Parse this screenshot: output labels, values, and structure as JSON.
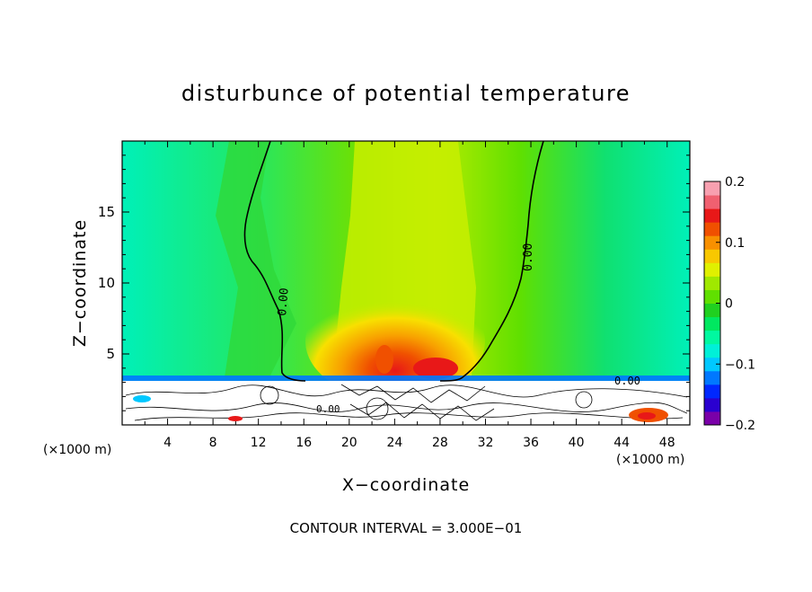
{
  "chart_data": {
    "type": "heatmap",
    "title": "disturbunce of potential temperature",
    "xlabel": "X−coordinate",
    "ylabel": "Z−coordinate",
    "x_unit_label": "(×1000 m)",
    "z_unit_label": "(×1000 m)",
    "xlim": [
      0,
      50
    ],
    "ylim": [
      0,
      20
    ],
    "x_ticks": [
      4,
      8,
      12,
      16,
      20,
      24,
      28,
      32,
      36,
      40,
      44,
      48
    ],
    "y_ticks": [
      5,
      10,
      15
    ],
    "colorbar": {
      "range": [
        -0.2,
        0.2
      ],
      "tick_values": [
        -0.2,
        -0.1,
        0,
        0.1,
        0.2
      ],
      "tick_labels": [
        "−0.2",
        "−0.1",
        "0",
        "0.1",
        "0.2"
      ],
      "colors": [
        "#7a00a8",
        "#2a00d0",
        "#0028ff",
        "#0078ff",
        "#00c8ff",
        "#00f0d8",
        "#00f8a0",
        "#00e860",
        "#20d020",
        "#60e000",
        "#a0e800",
        "#e0f000",
        "#f8c800",
        "#f89000",
        "#f05000",
        "#e81818",
        "#f06070",
        "#f8a0b0"
      ]
    },
    "contour_labels": [
      "0.00",
      "0.00",
      "0.00",
      "0.00"
    ],
    "contour_interval": "CONTOUR INTERVAL = 3.000E−01"
  }
}
